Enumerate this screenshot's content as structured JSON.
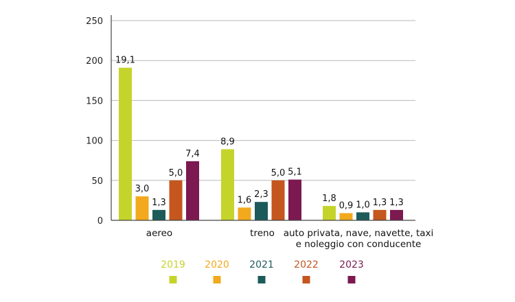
{
  "chart_data": {
    "type": "bar",
    "categories": [
      "aereo",
      "treno",
      "auto privata, nave, navette, taxi e noleggio con conducente"
    ],
    "category_lines": [
      [
        "aereo"
      ],
      [
        "treno"
      ],
      [
        "auto privata, nave, navette, taxi",
        "e noleggio con conducente"
      ]
    ],
    "series": [
      {
        "name": "2019",
        "color": "#c5d42b",
        "values": [
          191,
          89,
          18
        ],
        "labels": [
          "19,1",
          "8,9",
          "1,8"
        ]
      },
      {
        "name": "2020",
        "color": "#f2a91d",
        "values": [
          30,
          16,
          9
        ],
        "labels": [
          "3,0",
          "1,6",
          "0,9"
        ]
      },
      {
        "name": "2021",
        "color": "#1d5b5a",
        "values": [
          13,
          23,
          10
        ],
        "labels": [
          "1,3",
          "2,3",
          "1,0"
        ]
      },
      {
        "name": "2022",
        "color": "#c4561e",
        "values": [
          50,
          50,
          13
        ],
        "labels": [
          "5,0",
          "5,0",
          "1,3"
        ]
      },
      {
        "name": "2023",
        "color": "#7b1950",
        "values": [
          74,
          51,
          13
        ],
        "labels": [
          "7,4",
          "5,1",
          "1,3"
        ]
      }
    ],
    "ylim": [
      0,
      250
    ],
    "yticks": [
      0,
      50,
      100,
      150,
      200,
      250
    ],
    "grid": true,
    "legend_position": "bottom"
  }
}
